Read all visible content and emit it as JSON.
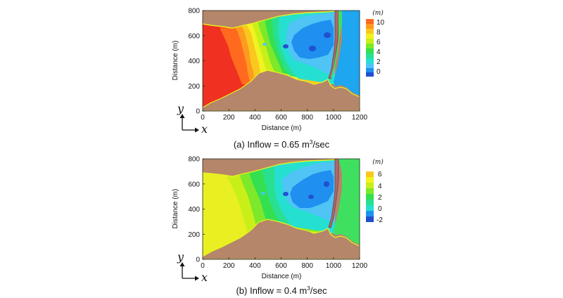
{
  "figure": {
    "panels": [
      {
        "caption_prefix": "(a) Inflow = 0.65 m",
        "caption_sup": "3",
        "caption_suffix": "/sec",
        "legend_unit": "(m)",
        "legend_ticks": [
          "10",
          "8",
          "6",
          "4",
          "2",
          "0"
        ],
        "coord_y": "y",
        "coord_x": "x"
      },
      {
        "caption_prefix": "(b) Inflow = 0.4 m",
        "caption_sup": "3",
        "caption_suffix": "/sec",
        "legend_unit": "(m)",
        "legend_ticks": [
          "6",
          "4",
          "2",
          "0",
          "-2"
        ],
        "coord_y": "y",
        "coord_x": "x"
      }
    ]
  },
  "colors": {
    "terrain": "#b5866a",
    "boundary": "#e8f020",
    "dark_blue": "#2050d0",
    "blue": "#1f8ff0",
    "light_blue": "#4fc4f5",
    "cyan": "#25e0d0",
    "teal_green": "#28e090",
    "green": "#34e050",
    "light_green": "#7ee82a",
    "yellow_green": "#c8f018",
    "yellow": "#f2f222",
    "amber": "#f9c81e",
    "orange": "#ff9a20",
    "orange_red": "#ff6a1e",
    "red": "#f03020",
    "channel_brown": "#b06868",
    "channel_dark": "#7a4a56",
    "outlet": "#1ea6f0",
    "outlet_green": "#3fe060"
  },
  "chart_data": [
    {
      "type": "heatmap",
      "title": "(a) Inflow = 0.65 m3/sec",
      "xlabel": "Distance (m)",
      "ylabel": "Distance (m)",
      "xlim": [
        0,
        1200
      ],
      "ylim": [
        0,
        800
      ],
      "xticks": [
        "0",
        "200",
        "400",
        "600",
        "800",
        "1000",
        "1200"
      ],
      "yticks": [
        "0",
        "200",
        "400",
        "600",
        "800"
      ],
      "colorbar": {
        "label": "(m)",
        "min": 0,
        "max": 11,
        "ticks": [
          10,
          8,
          6,
          4,
          2,
          0
        ]
      },
      "contour_bands": [
        {
          "x_range": [
            0,
            150
          ],
          "value": 10.5
        },
        {
          "x_range": [
            150,
            250
          ],
          "value": 9.5
        },
        {
          "x_range": [
            250,
            320
          ],
          "value": 8.5
        },
        {
          "x_range": [
            320,
            380
          ],
          "value": 7.5
        },
        {
          "x_range": [
            380,
            440
          ],
          "value": 6
        },
        {
          "x_range": [
            440,
            520
          ],
          "value": 4.5
        },
        {
          "x_range": [
            520,
            600
          ],
          "value": 3
        },
        {
          "x_range": [
            600,
            1060
          ],
          "value": 1.5
        }
      ],
      "deep_spots": [
        {
          "x": 630,
          "y": 505,
          "value": 0.3
        },
        {
          "x": 835,
          "y": 495,
          "value": 0.2
        },
        {
          "x": 980,
          "y": 590,
          "value": 0.1
        }
      ]
    },
    {
      "type": "heatmap",
      "title": "(b) Inflow = 0.4 m3/sec",
      "xlabel": "Distance (m)",
      "ylabel": "Distance (m)",
      "xlim": [
        0,
        1200
      ],
      "ylim": [
        0,
        800
      ],
      "xticks": [
        "0",
        "200",
        "400",
        "600",
        "800",
        "1000",
        "1200"
      ],
      "yticks": [
        "0",
        "200",
        "400",
        "600",
        "800"
      ],
      "colorbar": {
        "label": "(m)",
        "min": -2.5,
        "max": 7,
        "ticks": [
          6,
          4,
          2,
          0,
          -2
        ]
      },
      "contour_bands": [
        {
          "x_range": [
            0,
            260
          ],
          "value": 5.5
        },
        {
          "x_range": [
            260,
            330
          ],
          "value": 4.5
        },
        {
          "x_range": [
            330,
            400
          ],
          "value": 3.5
        },
        {
          "x_range": [
            400,
            480
          ],
          "value": 2.5
        },
        {
          "x_range": [
            480,
            570
          ],
          "value": 1.5
        },
        {
          "x_range": [
            570,
            1060
          ],
          "value": 0.5
        }
      ],
      "deep_spots": [
        {
          "x": 640,
          "y": 510,
          "value": -0.5
        },
        {
          "x": 840,
          "y": 485,
          "value": -0.4
        },
        {
          "x": 975,
          "y": 585,
          "value": -0.3
        }
      ]
    }
  ]
}
